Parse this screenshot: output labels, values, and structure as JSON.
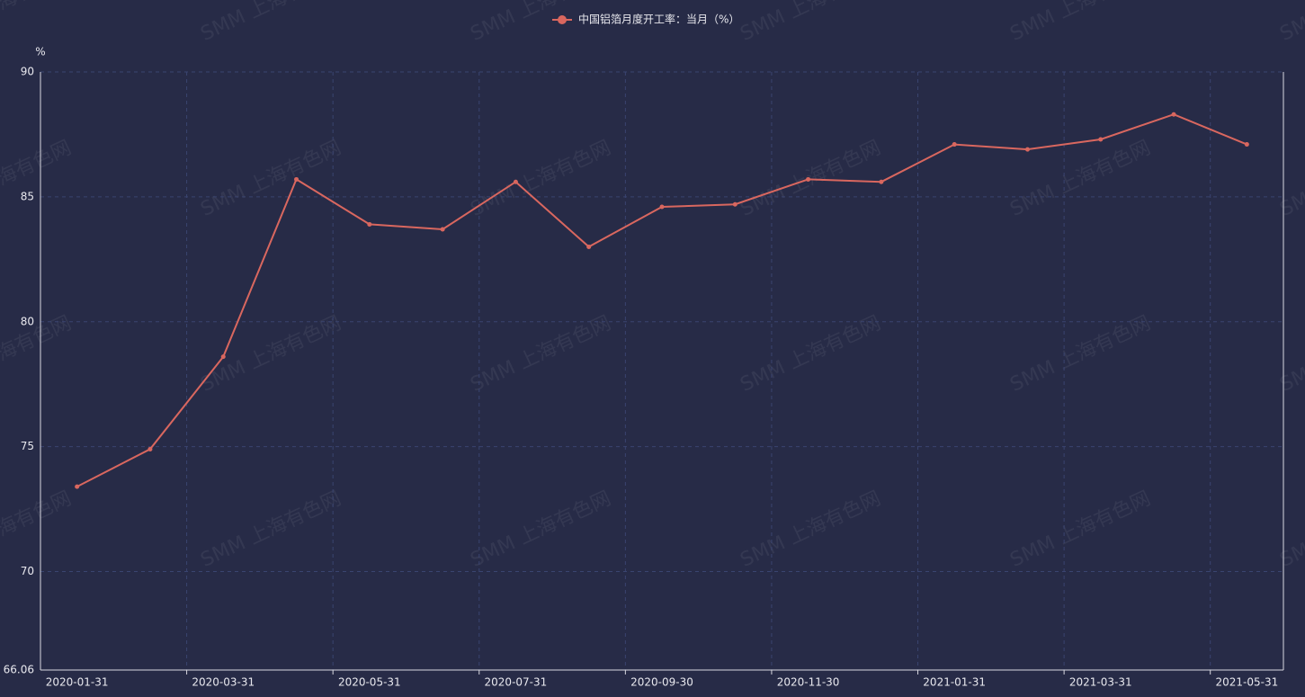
{
  "chart_data": {
    "type": "line",
    "legend_label": "中国铝箔月度开工率：当月（%）",
    "y_unit": "%",
    "watermark": "SMM 上海有色网",
    "categories": [
      "2020-01-31",
      null,
      "2020-03-31",
      null,
      "2020-05-31",
      null,
      "2020-07-31",
      null,
      "2020-09-30",
      null,
      "2020-11-30",
      null,
      "2021-01-31",
      null,
      "2021-03-31",
      null,
      "2021-05-31"
    ],
    "series": [
      {
        "name": "中国铝箔月度开工率：当月（%）",
        "color": "#d9675f",
        "values": [
          73.4,
          74.9,
          78.6,
          85.7,
          83.9,
          83.7,
          85.6,
          83.0,
          84.6,
          84.7,
          85.7,
          85.6,
          87.1,
          86.9,
          87.3,
          88.3,
          87.1
        ]
      }
    ],
    "ylim": [
      66.06,
      90
    ],
    "yticks": [
      66.06,
      70,
      75,
      80,
      85,
      90
    ],
    "grid": true
  }
}
